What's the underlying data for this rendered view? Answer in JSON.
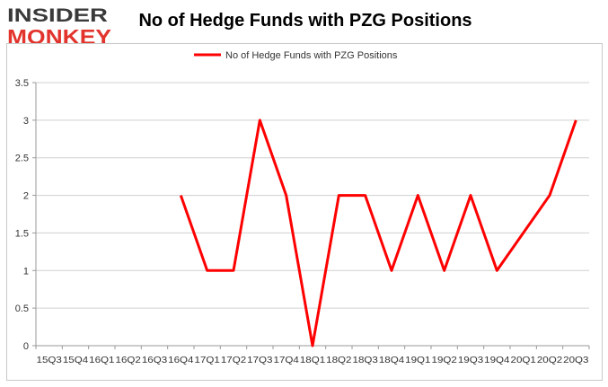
{
  "logo": {
    "line1": "INSIDER",
    "line2": "MONKEY",
    "color_dark": "#3a3a3a",
    "color_accent": "#e2342c"
  },
  "chart_data": {
    "type": "line",
    "title": "No of Hedge Funds with PZG Positions",
    "xlabel": "",
    "ylabel": "",
    "categories": [
      "15Q3",
      "15Q4",
      "16Q1",
      "16Q2",
      "16Q3",
      "16Q4",
      "17Q1",
      "17Q2",
      "17Q3",
      "17Q4",
      "18Q1",
      "18Q2",
      "18Q3",
      "18Q4",
      "19Q1",
      "19Q2",
      "19Q3",
      "19Q4",
      "20Q1",
      "20Q2",
      "20Q3"
    ],
    "x_tick_labels": [
      "15Q3",
      "15Q4",
      "16Q1",
      "16Q2",
      "16Q3",
      "16Q4",
      "17Q1",
      "17Q2",
      "17Q3",
      "17Q4",
      "18Q1",
      "18Q2",
      "18Q3",
      "18Q4",
      "19Q1",
      "19Q2",
      "19Q3",
      "19Q4",
      "20Q1",
      "20Q2",
      "20Q3"
    ],
    "series": [
      {
        "name": "No of Hedge Funds with PZG Positions",
        "color": "#ff0000",
        "values": [
          null,
          null,
          null,
          null,
          null,
          2,
          1,
          1,
          3,
          2,
          0,
          2,
          2,
          1,
          2,
          1,
          2,
          1,
          null,
          2,
          3
        ]
      }
    ],
    "ylim": [
      0,
      3.5
    ],
    "y_ticks": [
      0,
      0.5,
      1,
      1.5,
      2,
      2.5,
      3,
      3.5
    ],
    "y_tick_labels": [
      "0",
      "0.5",
      "1",
      "1.5",
      "2",
      "2.5",
      "3",
      "3.5"
    ],
    "grid": true,
    "legend_position": "top"
  }
}
